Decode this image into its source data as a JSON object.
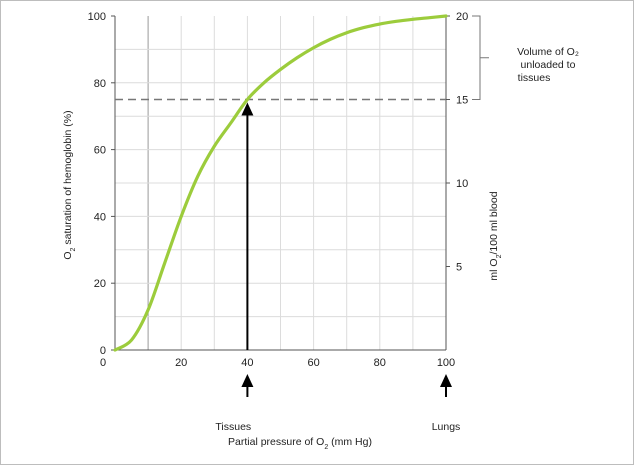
{
  "chart_data": {
    "type": "line",
    "title": "",
    "xlabel": "Partial pressure of O2 (mm Hg)",
    "ylabel": "O2 saturation of hemoglobin (%)",
    "y2label": "ml O2/100 ml blood",
    "xlim": [
      0,
      100
    ],
    "ylim": [
      0,
      100
    ],
    "y2lim": [
      0,
      20
    ],
    "x_ticks": [
      0,
      20,
      40,
      60,
      80,
      100
    ],
    "y_ticks": [
      0,
      20,
      40,
      60,
      80,
      100
    ],
    "y2_ticks": [
      5,
      10,
      15,
      20
    ],
    "grid": true,
    "series": [
      {
        "color": "#9ccc3c",
        "x": [
          0,
          5,
          10,
          15,
          20,
          25,
          30,
          35,
          40,
          45,
          50,
          55,
          60,
          65,
          70,
          75,
          80,
          85,
          90,
          95,
          100
        ],
        "y": [
          0,
          3,
          12,
          26,
          40,
          52,
          61,
          68,
          75,
          80,
          84,
          87.5,
          90.5,
          93,
          95,
          96.5,
          97.6,
          98.4,
          99,
          99.5,
          100
        ]
      }
    ],
    "reference_line": {
      "y": 75,
      "style": "dashed"
    },
    "annotations": {
      "volume_label_line1": "Volume of O₂",
      "volume_label_line2": "unloaded to",
      "volume_label_line3": "tissues",
      "tissues_label": "Tissues",
      "lungs_label": "Lungs",
      "tissues_x": 40,
      "lungs_x": 100
    }
  },
  "labels": {
    "xlabel_prefix": "Partial pressure of O",
    "xlabel_sub": "2",
    "xlabel_suffix": " (mm Hg)",
    "ylabel_prefix": "O",
    "ylabel_sub": "2",
    "ylabel_suffix": " saturation of hemoglobin (%)",
    "y2label_prefix": "ml O",
    "y2label_sub": "2",
    "y2label_suffix": "/100 ml blood"
  }
}
